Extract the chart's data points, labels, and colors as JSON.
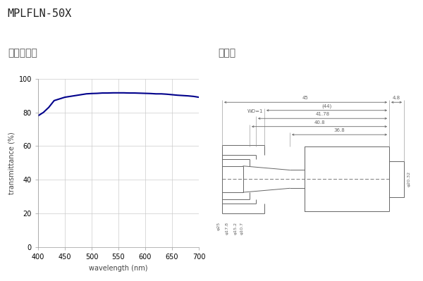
{
  "title": "MPLFLN-50X",
  "left_subtitle": "波长透射率",
  "right_subtitle": "尺寸图",
  "wavelengths": [
    400,
    410,
    420,
    430,
    440,
    450,
    460,
    470,
    480,
    490,
    500,
    510,
    520,
    530,
    540,
    550,
    560,
    570,
    580,
    590,
    600,
    610,
    620,
    630,
    640,
    650,
    660,
    670,
    680,
    690,
    700
  ],
  "transmittance": [
    78,
    80,
    83,
    87,
    88,
    89,
    89.5,
    90,
    90.5,
    91,
    91.2,
    91.3,
    91.5,
    91.5,
    91.6,
    91.6,
    91.6,
    91.5,
    91.5,
    91.4,
    91.3,
    91.2,
    91,
    91,
    90.8,
    90.5,
    90.2,
    90,
    89.8,
    89.5,
    89
  ],
  "xlabel": "wavelength (nm)",
  "ylabel": "transmittance (%)",
  "xlim": [
    400,
    700
  ],
  "ylim": [
    0,
    100
  ],
  "xticks": [
    400,
    450,
    500,
    550,
    600,
    650,
    700
  ],
  "yticks": [
    0,
    20,
    40,
    60,
    80,
    100
  ],
  "line_color": "#00008B",
  "grid_color": "#cccccc",
  "background_color": "#ffffff",
  "dim_45": "45",
  "dim_44": "(44)",
  "dim_4178": "41.78",
  "dim_408": "40.8",
  "dim_368": "36.8",
  "dim_48": "4.8",
  "dim_d25": "φ25",
  "dim_d178": "φ17.8",
  "dim_d152": "φ15.2",
  "dim_d107": "φ10.7",
  "dim_d2032": "φ20.32",
  "dim_wd1": "WD=1"
}
